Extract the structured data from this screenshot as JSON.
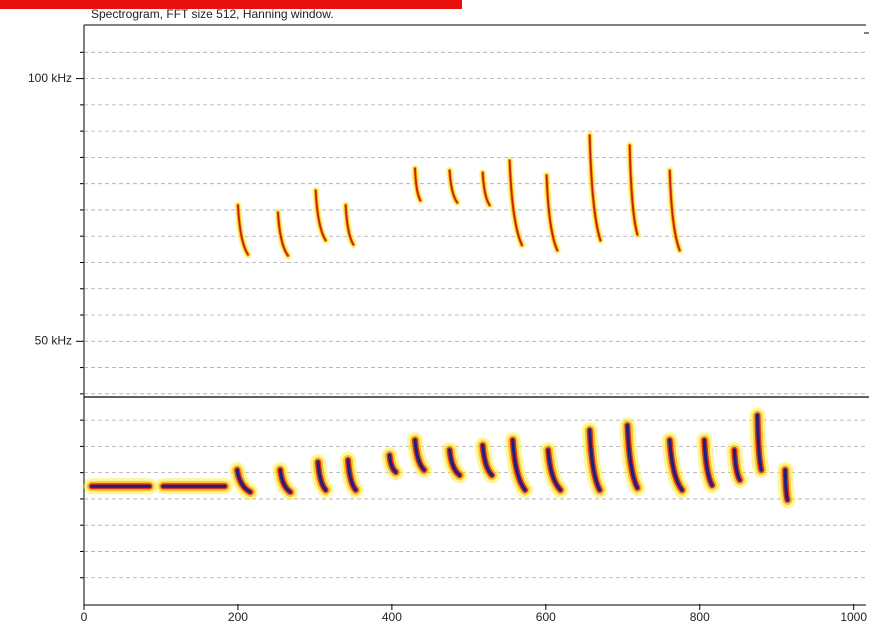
{
  "chart_data": {
    "type": "spectrogram",
    "title": "Spectrogram, FFT size 512, Hanning window.",
    "xlim": [
      0,
      1016
    ],
    "xticks": [
      0,
      200,
      400,
      600,
      800,
      1000
    ],
    "ylim": [
      0,
      110.2
    ],
    "yticks": [
      {
        "value": 50,
        "label": "50 kHz"
      },
      {
        "value": 100,
        "label": "100 kHz"
      }
    ],
    "minor_yticks": [
      5,
      10,
      15,
      20,
      25,
      30,
      35,
      40,
      45,
      55,
      60,
      65,
      70,
      75,
      80,
      85,
      90,
      95,
      105
    ],
    "grid": true,
    "call_times": [
      10,
      103,
      199,
      255,
      304,
      343,
      397,
      430,
      475,
      518,
      557,
      603,
      657,
      706,
      761,
      806,
      845,
      875,
      911
    ],
    "call_durations": [
      75,
      80,
      17,
      13,
      10,
      10,
      8,
      12,
      13,
      12,
      16,
      16,
      13,
      13,
      16,
      10,
      7,
      5,
      3
    ],
    "call_start_khz": [
      22.4,
      22.4,
      25.5,
      25.5,
      27.0,
      27.4,
      28.3,
      31.2,
      29.3,
      30.2,
      31.2,
      29.3,
      33.1,
      34.0,
      31.2,
      31.2,
      29.3,
      35.9,
      25.5
    ],
    "call_end_khz": [
      22.4,
      22.4,
      21.3,
      21.3,
      21.7,
      21.7,
      25.1,
      25.5,
      24.5,
      24.5,
      21.7,
      21.7,
      21.7,
      22.1,
      21.7,
      22.6,
      23.6,
      25.5,
      19.8
    ],
    "harmonic_times": [
      200,
      252,
      301,
      340,
      430,
      475,
      518,
      553,
      601,
      657,
      709,
      761
    ],
    "harmonic_durations": [
      13,
      13,
      13,
      10,
      7,
      10,
      9,
      16,
      14,
      14,
      10,
      13
    ],
    "harmonic_start_khz": [
      75.9,
      74.5,
      78.7,
      75.9,
      82.9,
      82.5,
      82.1,
      84.4,
      81.6,
      89.2,
      87.3,
      82.5
    ],
    "harmonic_end_khz": [
      66.5,
      66.3,
      69.2,
      68.4,
      76.8,
      76.4,
      75.9,
      68.3,
      67.3,
      69.2,
      70.3,
      67.3
    ]
  }
}
